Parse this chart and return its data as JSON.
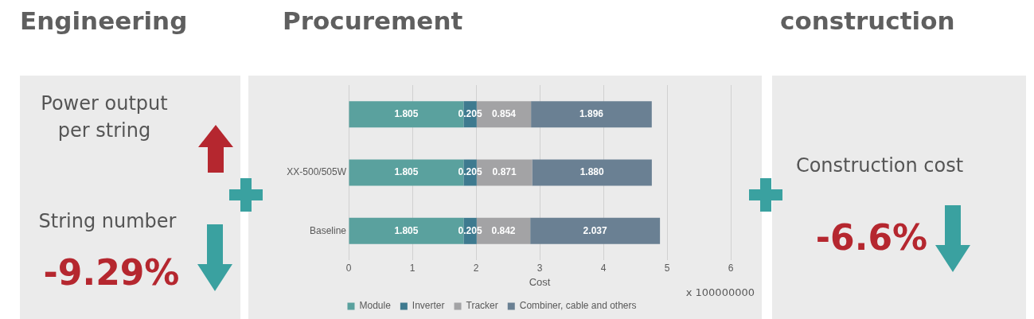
{
  "chart_data": [
    {
      "type": "other",
      "title": "Engineering",
      "annotations": [
        "Power output per string",
        "String number",
        "-9.29%"
      ]
    },
    {
      "type": "bar",
      "title": "Procurement",
      "orientation": "horizontal",
      "stacked": true,
      "xlabel": "Cost",
      "categories": [
        null,
        "XX-500/505W",
        "Baseline"
      ],
      "xlim": [
        0,
        6
      ],
      "xticks": [
        0,
        1,
        2,
        3,
        4,
        5,
        6
      ],
      "grid": "x",
      "legend": "bottom",
      "annotations": [
        "x 100000000"
      ],
      "series": [
        {
          "name": "Module",
          "color": "#5aa19e",
          "values": [
            1.805,
            1.805,
            1.805
          ],
          "value_labels": [
            "1.805",
            "1.805",
            "1.805"
          ]
        },
        {
          "name": "Inverter",
          "color": "#3e7a8f",
          "values": [
            0.205,
            0.205,
            0.205
          ],
          "value_labels": [
            "0.205",
            "0.205",
            "0.205"
          ]
        },
        {
          "name": "Tracker",
          "color": "#a3a3a5",
          "values": [
            0.854,
            0.871,
            0.842
          ],
          "value_labels": [
            "0.854",
            "0.871",
            "0.842"
          ]
        },
        {
          "name": "Combiner, cable and others",
          "color": "#6a8093",
          "values": [
            1.896,
            1.88,
            2.037
          ],
          "value_labels": [
            "1.896",
            "1.880",
            "2.037"
          ]
        }
      ]
    },
    {
      "type": "other",
      "title": "construction",
      "annotations": [
        "Construction cost",
        "-6.6%"
      ]
    }
  ]
}
